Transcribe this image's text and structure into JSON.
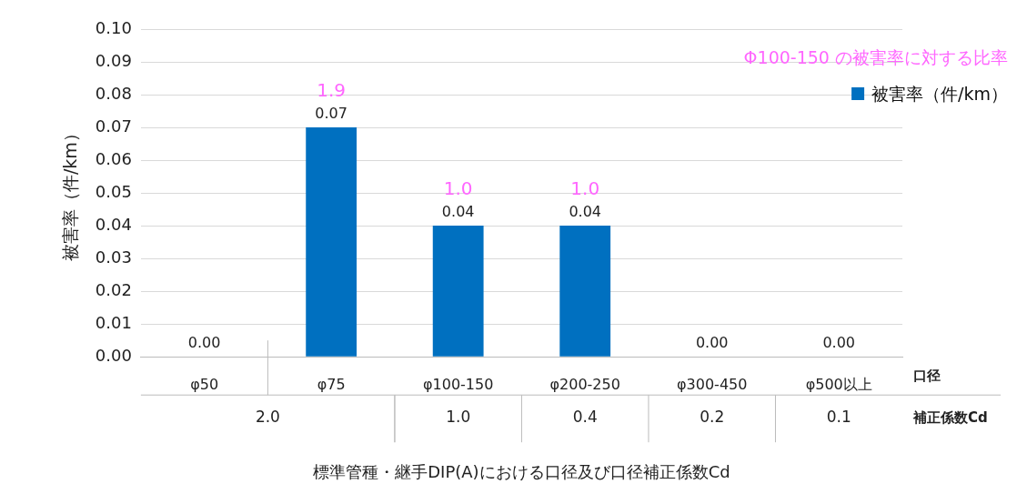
{
  "chart_data": {
    "type": "bar",
    "xlabel": "標準管種・継手DIP(A)における口径及び口径補正係数Cd",
    "ylabel": "被害率（件/km）",
    "categories": [
      "φ50",
      "φ75",
      "φ100-150",
      "φ200-250",
      "φ300-450",
      "φ500以上"
    ],
    "series": [
      {
        "name": "被害率（件/km）",
        "color": "#0070c0",
        "values": [
          0,
          0.07,
          0.04,
          0.04,
          0,
          0
        ],
        "value_labels": [
          "0.00",
          "0.07",
          "0.04",
          "0.04",
          "0.00",
          "0.00"
        ]
      }
    ],
    "ylim": [
      0,
      0.1
    ],
    "yticks": [
      "0.00",
      "0.01",
      "0.02",
      "0.03",
      "0.04",
      "0.05",
      "0.06",
      "0.07",
      "0.08",
      "0.09",
      "0.10"
    ],
    "grid": "y",
    "legend": "top right",
    "annotations": [
      "Φ100-150 の被害率に対する比率",
      "口径",
      "補正係数Cd",
      "2.0",
      "1.0",
      "0.4",
      "0.2",
      "0.1",
      {
        "text": "1.9",
        "x": "φ75",
        "y": 0.07
      },
      {
        "text": "1.0",
        "x": "φ100-150",
        "y": 0.04
      },
      {
        "text": "1.0",
        "x": "φ200-250",
        "y": 0.04
      }
    ]
  }
}
